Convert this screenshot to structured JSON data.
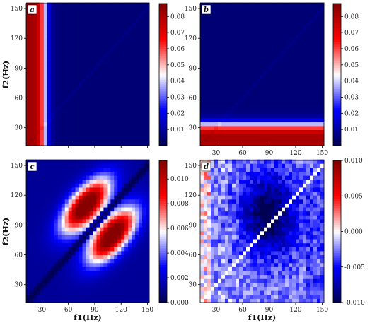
{
  "chart_data": [
    {
      "type": "heatmap",
      "panel_label": "a",
      "xlabel": "",
      "ylabel": "f2(Hz)",
      "x_range": [
        12,
        152
      ],
      "y_range": [
        12,
        155
      ],
      "x_ticks": [
        30,
        60,
        90,
        120,
        150
      ],
      "y_ticks": [
        30,
        60,
        90,
        120,
        150
      ],
      "x_ticks_visible": false,
      "y_ticks_visible": true,
      "colorbar": {
        "colormap": "seismic",
        "min": 0.0,
        "max": 0.088,
        "ticks": [
          0.01,
          0.02,
          0.03,
          0.04,
          0.05,
          0.06,
          0.07,
          0.08
        ],
        "tick_labels": [
          "0.01",
          "0.02",
          "0.03",
          "0.04",
          "0.05",
          "0.06",
          "0.07",
          "0.08"
        ]
      },
      "pattern": "vertical band: high values (~0.08) for f1 below ~30 Hz, dropping to ~0.005 above 45 Hz; faint diagonal"
    },
    {
      "type": "heatmap",
      "panel_label": "b",
      "xlabel": "",
      "ylabel": "",
      "x_range": [
        12,
        152
      ],
      "y_range": [
        12,
        155
      ],
      "x_ticks": [
        30,
        60,
        90,
        120,
        150
      ],
      "y_ticks": [
        30,
        60,
        90,
        120,
        150
      ],
      "x_ticks_visible": true,
      "y_ticks_visible": true,
      "colorbar": {
        "colormap": "seismic",
        "min": 0.0,
        "max": 0.088,
        "ticks": [
          0.01,
          0.02,
          0.03,
          0.04,
          0.05,
          0.06,
          0.07,
          0.08
        ],
        "tick_labels": [
          "0.01",
          "0.02",
          "0.03",
          "0.04",
          "0.05",
          "0.06",
          "0.07",
          "0.08"
        ]
      },
      "pattern": "horizontal band: high values (~0.08) for f2 below ~30 Hz, dropping to ~0.005 above 45 Hz; faint diagonal"
    },
    {
      "type": "heatmap",
      "panel_label": "c",
      "xlabel": "f1(Hz)",
      "ylabel": "f2(Hz)",
      "x_range": [
        12,
        152
      ],
      "y_range": [
        12,
        155
      ],
      "x_ticks": [
        30,
        60,
        90,
        120,
        150
      ],
      "y_ticks": [
        30,
        60,
        90,
        120,
        150
      ],
      "x_ticks_visible": true,
      "y_ticks_visible": true,
      "colorbar": {
        "colormap": "seismic",
        "min": 0.0,
        "max": 0.0115,
        "ticks": [
          0.0,
          0.002,
          0.004,
          0.006,
          0.008,
          0.01
        ],
        "tick_labels": [
          "0.000",
          "0.002",
          "0.004",
          "0.006",
          "0.008",
          "0.010"
        ]
      },
      "pattern": "two elliptical blobs (~0.011) centred near (80,110) and (110,80), elongated along the diagonal; diagonal itself near 0"
    },
    {
      "type": "heatmap",
      "panel_label": "d",
      "xlabel": "f1(Hz)",
      "ylabel": "",
      "x_range": [
        12,
        152
      ],
      "y_range": [
        12,
        155
      ],
      "x_ticks": [
        30,
        60,
        90,
        120,
        150
      ],
      "y_ticks": [
        30,
        60,
        90,
        120,
        150
      ],
      "x_ticks_visible": true,
      "y_ticks_visible": true,
      "colorbar": {
        "colormap": "seismic",
        "min": -0.01,
        "max": 0.01,
        "ticks": [
          -0.01,
          -0.005,
          0.0,
          0.005,
          0.01
        ],
        "tick_labels": [
          "-0.010",
          "-0.005",
          "0.000",
          "0.005",
          "0.010"
        ]
      },
      "pattern": "noisy difference map: mostly slight negative (blue) values, strongest (~-0.009) around f1 60-110 Hz, f2 80-130 Hz; slight positive (red) at f1 below 25 Hz; diagonal white (0)"
    }
  ]
}
